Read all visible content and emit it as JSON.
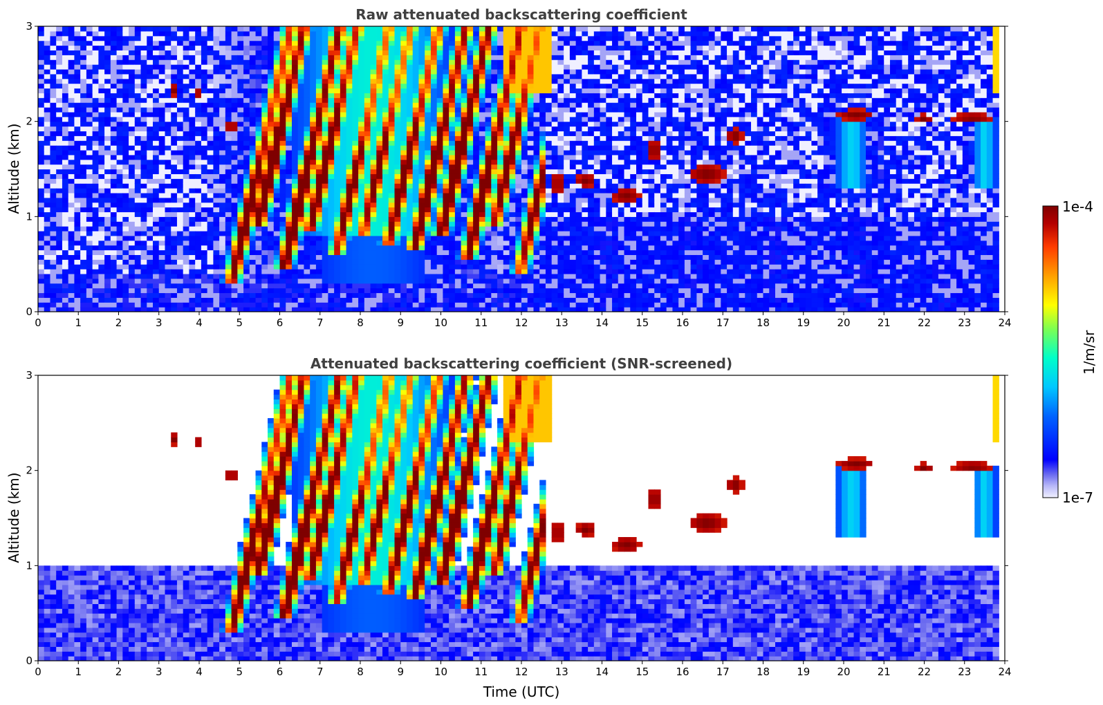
{
  "chart_data": [
    {
      "type": "heatmap",
      "title": "Raw attenuated backscattering coefficient",
      "xlabel": "",
      "ylabel": "Altitude (km)",
      "xlim": [
        0,
        24
      ],
      "ylim": [
        0,
        3
      ],
      "xticks": [
        "0",
        "1",
        "2",
        "3",
        "4",
        "5",
        "6",
        "7",
        "8",
        "9",
        "10",
        "11",
        "12",
        "13",
        "14",
        "15",
        "16",
        "17",
        "18",
        "19",
        "20",
        "21",
        "22",
        "23",
        "24"
      ],
      "yticks": [
        "0",
        "1",
        "2",
        "3"
      ],
      "grid": false,
      "features": [
        {
          "name": "cirrus-falling",
          "x": [
            4.5,
            12.5
          ],
          "y": [
            0.2,
            3.0
          ],
          "level": "1e-5"
        },
        {
          "name": "low-cloud-1",
          "x": [
            12.5,
            18.0
          ],
          "y": [
            1.0,
            1.9
          ],
          "level": "1e-4"
        },
        {
          "name": "low-cloud-2",
          "x": [
            19.5,
            23.8
          ],
          "y": [
            1.9,
            2.2
          ],
          "level": "1e-4"
        },
        {
          "name": "boundary-layer",
          "x": [
            0,
            24
          ],
          "y": [
            0,
            1.0
          ],
          "level": "1e-7"
        }
      ]
    },
    {
      "type": "heatmap",
      "title": "Attenuated backscattering coefficient (SNR-screened)",
      "xlabel": "Time (UTC)",
      "ylabel": "Altitude (km)",
      "xlim": [
        0,
        24
      ],
      "ylim": [
        0,
        3
      ],
      "xticks": [
        "0",
        "1",
        "2",
        "3",
        "4",
        "5",
        "6",
        "7",
        "8",
        "9",
        "10",
        "11",
        "12",
        "13",
        "14",
        "15",
        "16",
        "17",
        "18",
        "19",
        "20",
        "21",
        "22",
        "23",
        "24"
      ],
      "yticks": [
        "0",
        "1",
        "2",
        "3"
      ],
      "grid": false
    }
  ],
  "colorbar": {
    "min_label": "1e-7",
    "max_label": "1e-4",
    "label": "1/m/sr",
    "colormap": "jet",
    "colors": [
      "#f0f0ff",
      "#b8b8f8",
      "#6a6af0",
      "#0000ff",
      "#0064ff",
      "#00c8ff",
      "#00ffc8",
      "#7fff50",
      "#ffff00",
      "#ffa000",
      "#ff3c00",
      "#b40000",
      "#7f0000"
    ]
  }
}
